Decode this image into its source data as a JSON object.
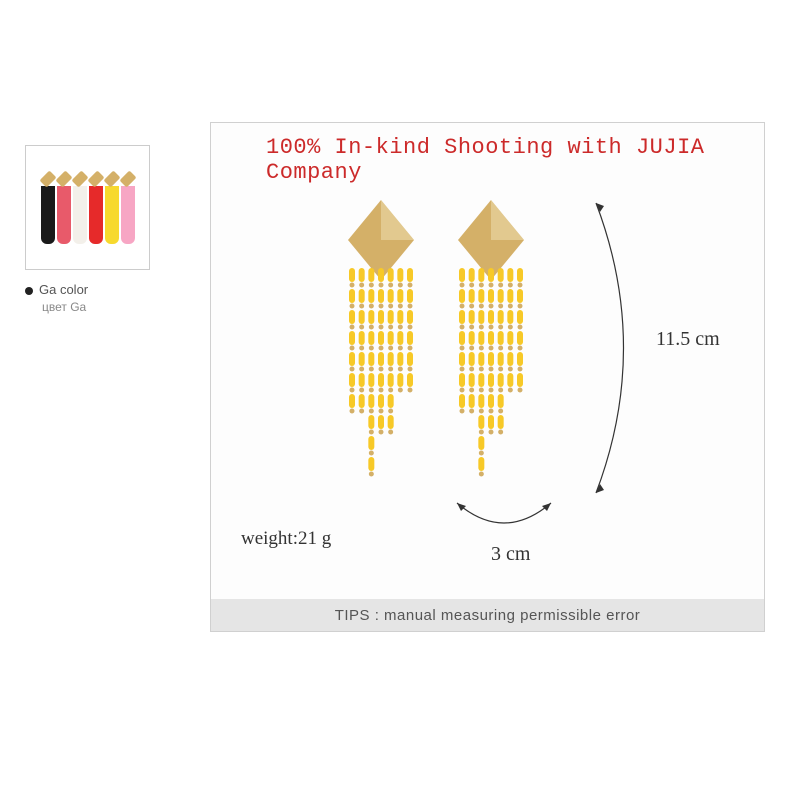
{
  "headline": {
    "text": "100% In-kind Shooting with JUJIA Company",
    "color": "#cc2a2a",
    "font_family": "Courier New, monospace",
    "font_size": 22
  },
  "thumbnail": {
    "variants": [
      {
        "body": "#1a1a1a",
        "accent": "#ffffff"
      },
      {
        "body": "#e85a6a",
        "accent": "#5ad0c0"
      },
      {
        "body": "#f3f0ea",
        "accent": "#d4b068"
      },
      {
        "body": "#e62a2a",
        "accent": "#d4b068"
      },
      {
        "body": "#f7d92e",
        "accent": "#d4b068"
      },
      {
        "body": "#f7a6c4",
        "accent": "#ffffff"
      }
    ],
    "label_main": "Ga color",
    "label_sub": "цвет Ga"
  },
  "product": {
    "bead_color": "#f7c927",
    "metal_color": "#d4b068",
    "metal_light": "#e8d4a0",
    "tassel_strands": 7
  },
  "measurements": {
    "height_text": "11.5 cm",
    "width_text": "3 cm",
    "weight_text": "weight:21 g",
    "arc_color": "#333333"
  },
  "tips": {
    "text": "TIPS : manual measuring permissible error",
    "bg": "#e5e5e5",
    "color": "#555555"
  },
  "frame": {
    "border_color": "#d0d0d0",
    "bg": "#fdfdfd"
  }
}
